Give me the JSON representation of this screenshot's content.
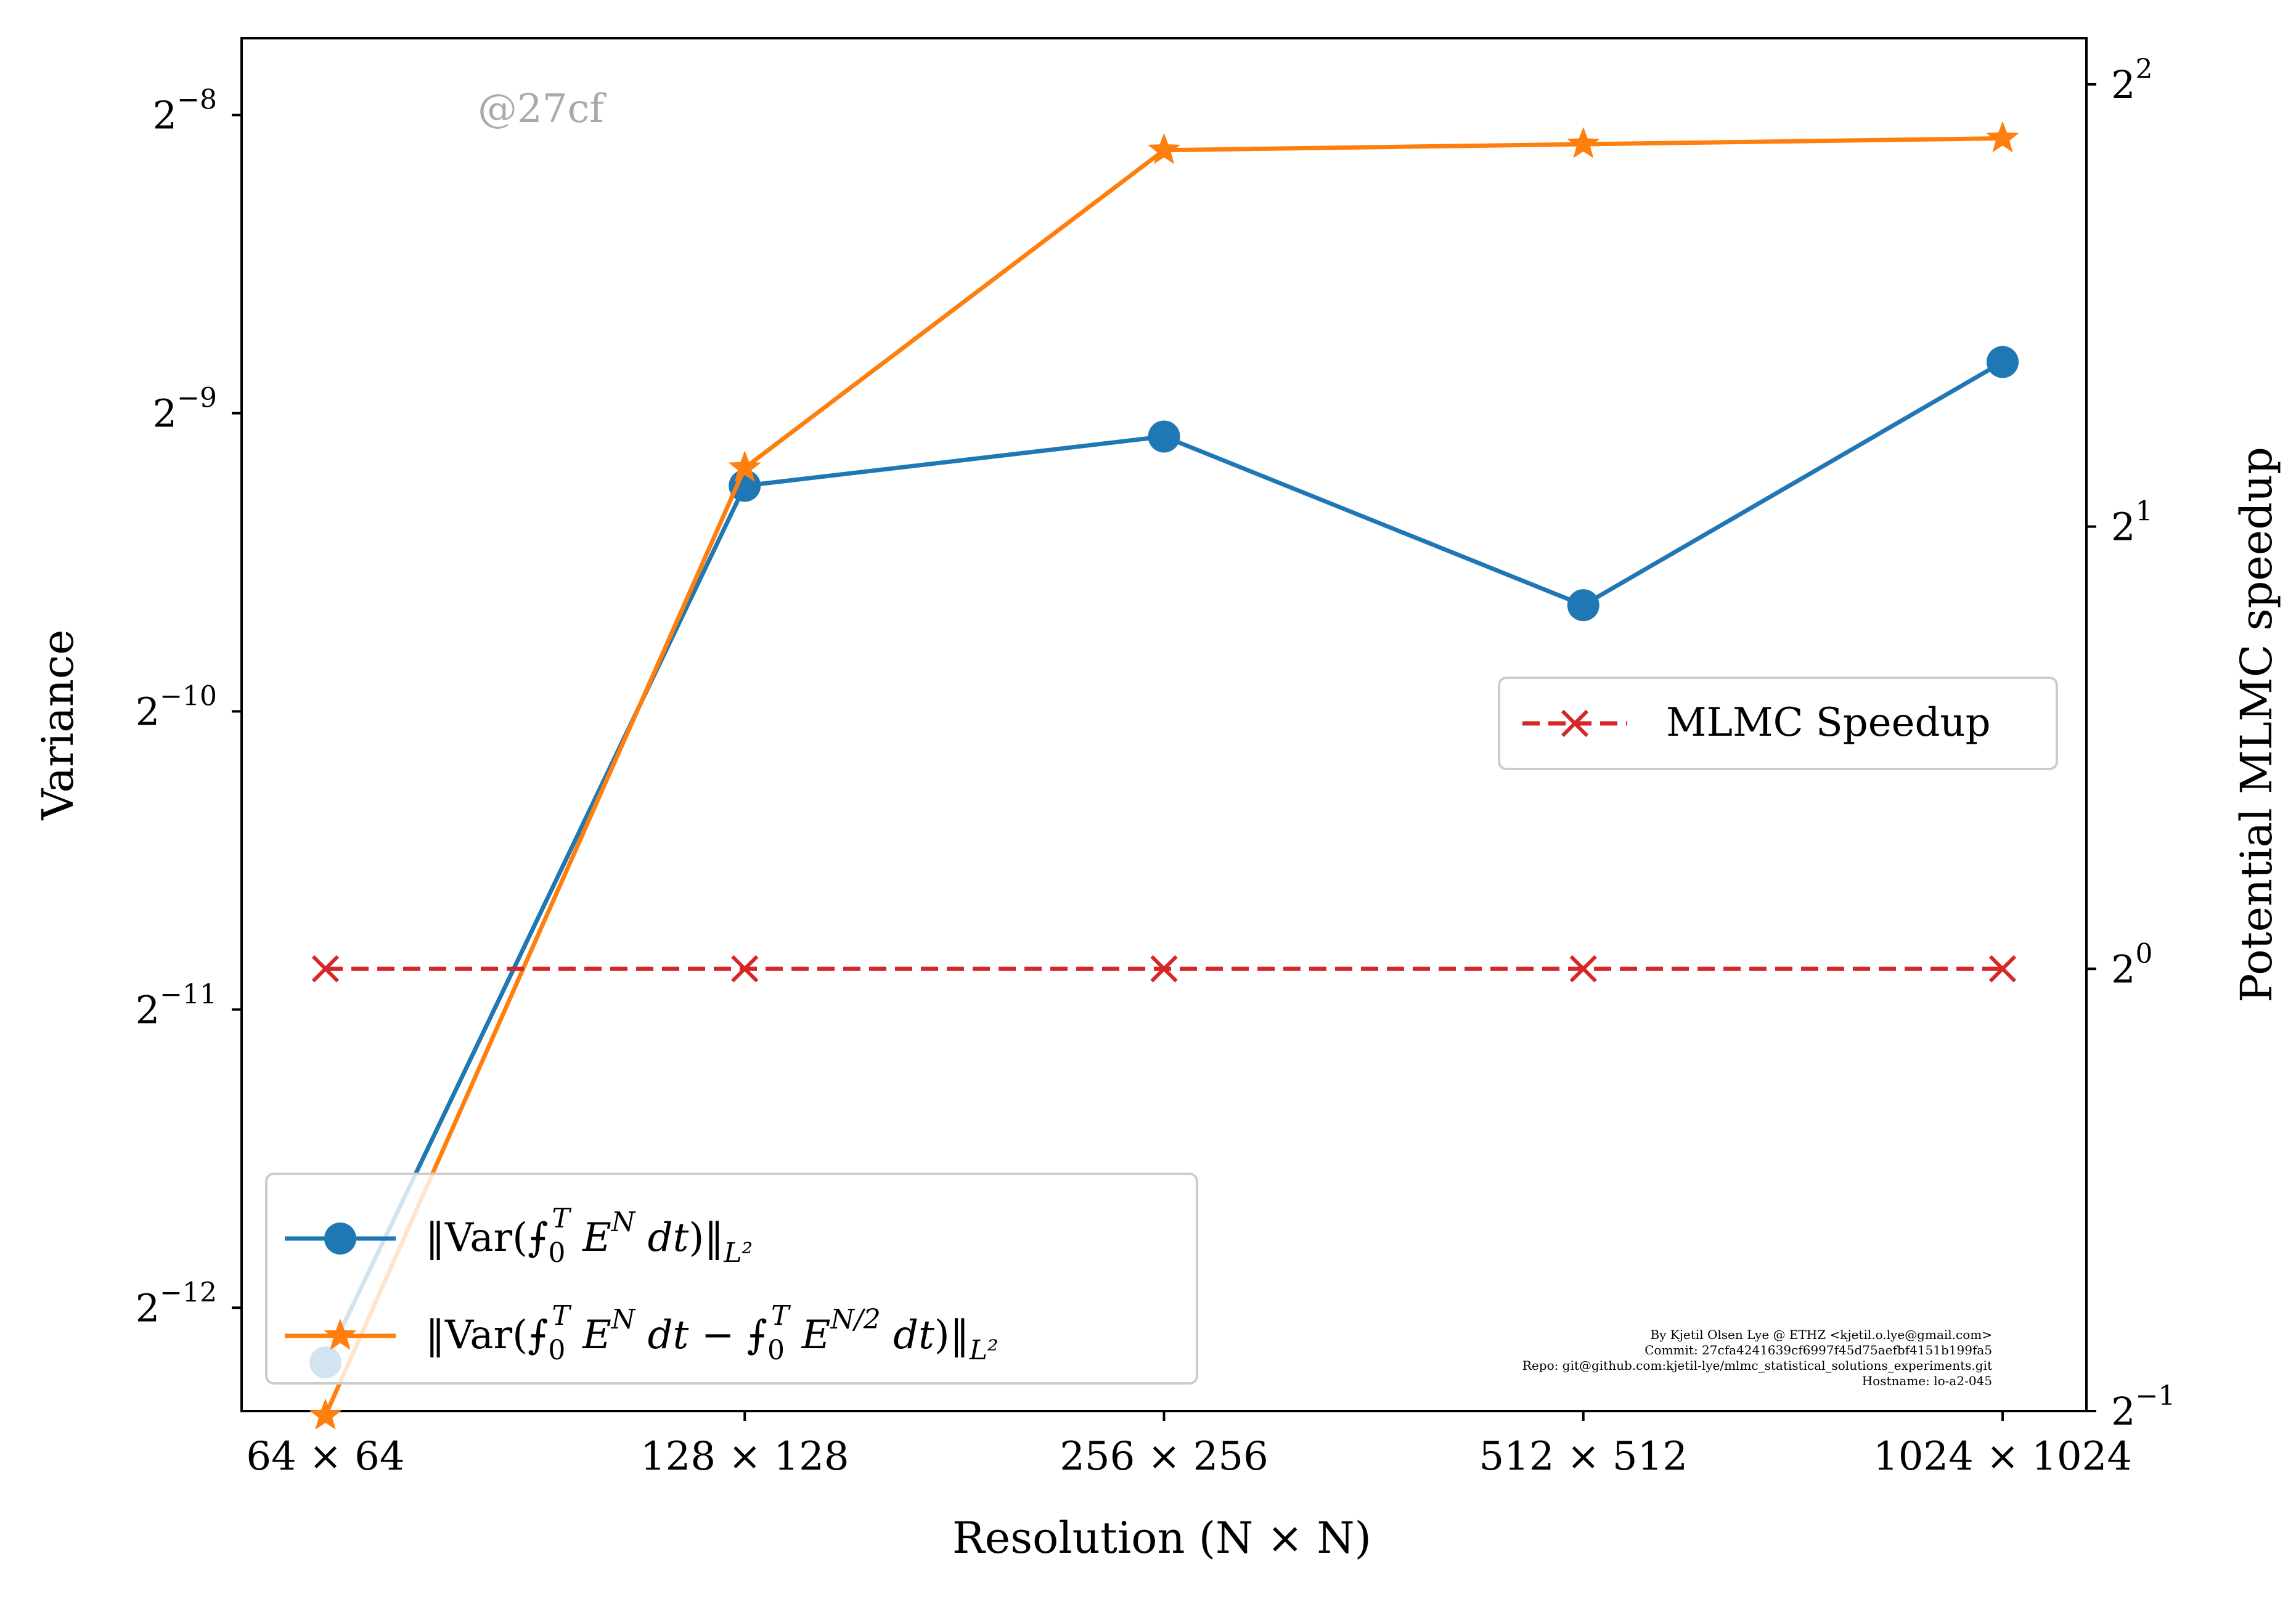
{
  "chart_data": {
    "type": "line",
    "categories": [
      "64 × 64",
      "128 × 128",
      "256 × 256",
      "512 × 512",
      "1024 × 1024"
    ],
    "xlabel": "Resolution (N × N)",
    "ylabel": "Variance",
    "y2label": "Potential MLMC speedup",
    "y_scale": "log2",
    "y2_scale": "log2",
    "ylim": [
      0.000192,
      0.00467
    ],
    "y2lim": [
      0.5,
      4.3
    ],
    "yticks": [
      {
        "value": 0.00390625,
        "label": "2",
        "exp": "−8"
      },
      {
        "value": 0.001953125,
        "label": "2",
        "exp": "−9"
      },
      {
        "value": 0.0009765625,
        "label": "2",
        "exp": "−10"
      },
      {
        "value": 0.00048828125,
        "label": "2",
        "exp": "−11"
      },
      {
        "value": 0.000244140625,
        "label": "2",
        "exp": "−12"
      }
    ],
    "y2ticks": [
      {
        "value": 4,
        "label": "2",
        "exp": "2"
      },
      {
        "value": 2,
        "label": "2",
        "exp": "1"
      },
      {
        "value": 1,
        "label": "2",
        "exp": "0"
      },
      {
        "value": 0.5,
        "label": "2",
        "exp": "−1"
      }
    ],
    "series": [
      {
        "name": "‖Var(⨍₀ᵀ Eᴺ dt)‖_L²",
        "axis": "left",
        "color": "#1f77b4",
        "marker": "circle",
        "linestyle": "solid",
        "values": [
          0.000215,
          0.00165,
          0.00185,
          0.00125,
          0.0022
        ]
      },
      {
        "name": "‖Var(⨍₀ᵀ Eᴺ dt − ⨍₀ᵀ Eᴺ/² dt)‖_L²",
        "axis": "left",
        "color": "#ff7f0e",
        "marker": "star",
        "linestyle": "solid",
        "values": [
          0.00019,
          0.00172,
          0.0036,
          0.00365,
          0.0037
        ]
      },
      {
        "name": "MLMC Speedup",
        "axis": "right",
        "color": "#d62728",
        "marker": "x",
        "linestyle": "dashed",
        "values": [
          1.0,
          1.0,
          1.0,
          1.0,
          1.0
        ]
      }
    ],
    "legend_left_placement": "lower-left",
    "legend_right_placement": "center-right",
    "grid": false,
    "watermark": "@27cf",
    "footer_text": [
      "By Kjetil Olsen Lye @ ETHZ <kjetil.o.lye@gmail.com>",
      "Commit: 27cfa4241639cf6997f45d75aefbf4151b199fa5",
      "Repo: git@github.com:kjetil-lye/mlmc_statistical_solutions_experiments.git",
      "Hostname: lo-a2-045"
    ]
  }
}
